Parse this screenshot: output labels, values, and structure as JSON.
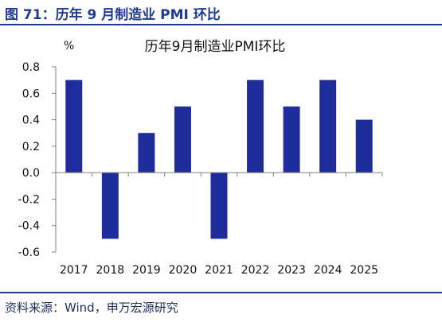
{
  "figure": {
    "title": "图 71：历年 9 月制造业 PMI 环比",
    "source": "资料来源：Wind，申万宏源研究"
  },
  "chart_data": {
    "type": "bar",
    "title": "历年9月制造业PMI环比",
    "ylabel": "%",
    "xlabel": "",
    "categories": [
      "2017",
      "2018",
      "2019",
      "2020",
      "2021",
      "2022",
      "2023",
      "2024",
      "2025"
    ],
    "values": [
      0.7,
      -0.5,
      0.3,
      0.5,
      -0.5,
      0.7,
      0.5,
      0.7,
      0.4
    ],
    "ylim": [
      -0.6,
      0.8
    ],
    "yticks": [
      "0.8",
      "0.6",
      "0.4",
      "0.2",
      "0.0",
      "-0.2",
      "-0.4",
      "-0.6"
    ],
    "grid": false,
    "legend": "none",
    "bar_color": "#1f2d9c",
    "axis_color": "#7f7f7f"
  }
}
